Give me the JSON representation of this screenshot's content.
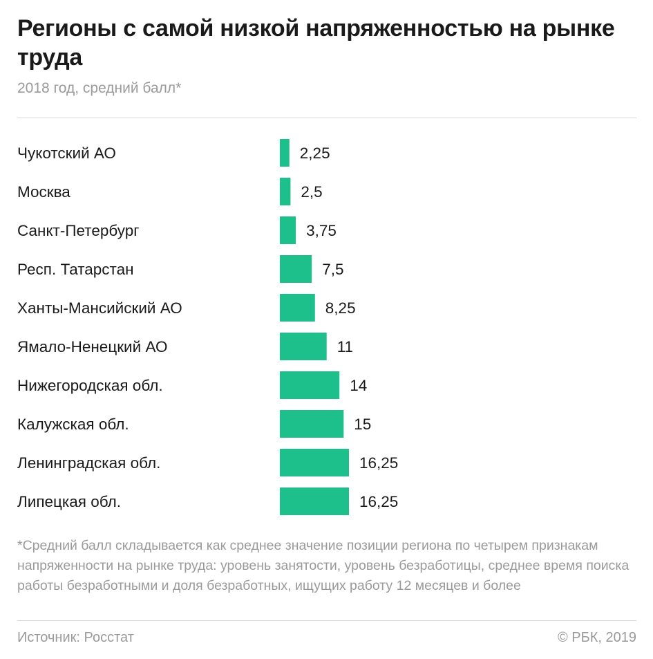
{
  "title": "Регионы с самой низкой напряженностью на рынке труда",
  "subtitle": "2018 год, средний балл*",
  "footnote": "*Средний балл складывается как среднее значение позиции региона по четырем признакам напряженности на рынке труда: уровень занятости, уровень безработицы, среднее время поиска работы безработными и доля безработных, ищущих работу 12 месяцев и более",
  "source": "Источник: Росстат",
  "copyright": "© РБК, 2019",
  "colors": {
    "bar": "#1dbf8a",
    "label": "#1a1a1a",
    "muted": "#9a9a9a"
  },
  "chart_data": {
    "type": "bar",
    "orientation": "horizontal",
    "title": "Регионы с самой низкой напряженностью на рынке труда",
    "subtitle": "2018 год, средний балл*",
    "categories": [
      "Чукотский АО",
      "Москва",
      "Санкт-Петербург",
      "Респ. Татарстан",
      "Ханты-Мансийский АО",
      "Ямало-Ненецкий АО",
      "Нижегородская обл.",
      "Калужская обл.",
      "Ленинградская обл.",
      "Липецкая обл."
    ],
    "values": [
      2.25,
      2.5,
      3.75,
      7.5,
      8.25,
      11,
      14,
      15,
      16.25,
      16.25
    ],
    "value_labels": [
      "2,25",
      "2,5",
      "3,75",
      "7,5",
      "8,25",
      "11",
      "14",
      "15",
      "16,25",
      "16,25"
    ],
    "xlim": [
      0,
      16.25
    ],
    "grid": false,
    "legend": "none"
  }
}
